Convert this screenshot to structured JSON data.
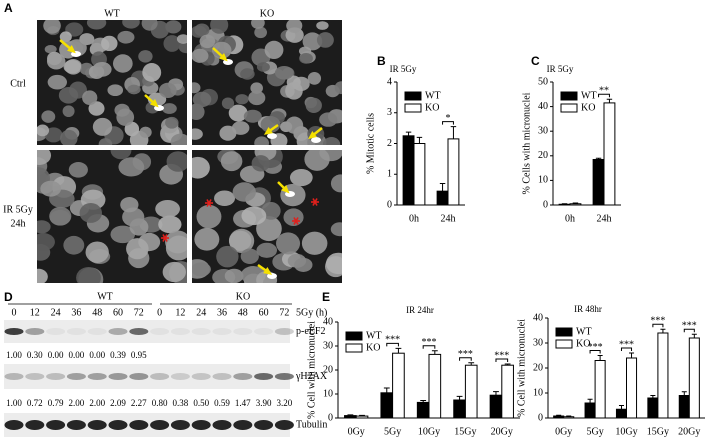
{
  "panel_a": {
    "label": "A",
    "columns": [
      "WT",
      "KO"
    ],
    "rows": [
      [
        "Ctrl"
      ],
      [
        "IR 5Gy",
        "24h"
      ]
    ]
  },
  "panel_d": {
    "label": "D",
    "groups": [
      "WT",
      "KO"
    ],
    "lanes": [
      "0",
      "12",
      "24",
      "36",
      "48",
      "60",
      "72",
      "0",
      "12",
      "24",
      "36",
      "48",
      "60",
      "72"
    ],
    "lane_unit": "5Gy (h)",
    "blots": [
      {
        "name": "p-eEF2",
        "quant": [
          "1.00",
          "0.30",
          "0.00",
          "0.00",
          "0.00",
          "0.39",
          "0.95"
        ]
      },
      {
        "name": "γH2AX",
        "quant": [
          "1.00",
          "0.72",
          "0.79",
          "2.00",
          "2.00",
          "2.09",
          "2.27",
          "0.80",
          "0.38",
          "0.50",
          "0.59",
          "1.47",
          "3.90",
          "3.20"
        ]
      },
      {
        "name": "Tubulin"
      }
    ]
  },
  "chart_data": [
    {
      "panel": "B",
      "type": "bar",
      "title": "IR 5Gy",
      "ylabel": "% Mitotic cells",
      "categories": [
        "0h",
        "24h"
      ],
      "series": [
        {
          "name": "WT",
          "color": "#000000",
          "values": [
            2.25,
            0.45
          ],
          "errors": [
            0.12,
            0.25
          ]
        },
        {
          "name": "KO",
          "color": "#ffffff",
          "values": [
            2.0,
            2.15
          ],
          "errors": [
            0.2,
            0.4
          ]
        }
      ],
      "significance": [
        null,
        "*"
      ],
      "ylim": [
        0,
        4
      ],
      "yticks": [
        0,
        1,
        2,
        3,
        4
      ],
      "legend": "upper left"
    },
    {
      "panel": "C",
      "type": "bar",
      "title": "IR 5Gy",
      "ylabel": "% Cells with micronuclei",
      "categories": [
        "0h",
        "24h"
      ],
      "series": [
        {
          "name": "WT",
          "color": "#000000",
          "values": [
            0.3,
            18.5
          ],
          "errors": [
            0.2,
            0.5
          ]
        },
        {
          "name": "KO",
          "color": "#ffffff",
          "values": [
            0.5,
            41.5
          ],
          "errors": [
            0.3,
            1.5
          ]
        }
      ],
      "significance": [
        null,
        "**"
      ],
      "ylim": [
        0,
        50
      ],
      "yticks": [
        0,
        10,
        20,
        30,
        40,
        50
      ],
      "legend": "upper left"
    },
    {
      "panel": "E",
      "type": "bar",
      "title": "IR 24hr",
      "ylabel": "% Cell with micronuclei",
      "categories": [
        "0Gy",
        "5Gy",
        "10Gy",
        "15Gy",
        "20Gy"
      ],
      "series": [
        {
          "name": "WT",
          "color": "#000000",
          "values": [
            1,
            10.5,
            6.5,
            7.5,
            9.5
          ],
          "errors": [
            0.3,
            2,
            0.8,
            1.5,
            1.5
          ]
        },
        {
          "name": "KO",
          "color": "#ffffff",
          "values": [
            0.8,
            27,
            26.5,
            22,
            22
          ],
          "errors": [
            0.3,
            2,
            1.5,
            1,
            0.5
          ]
        }
      ],
      "significance": [
        null,
        "***",
        "***",
        "***",
        "***"
      ],
      "ylim": [
        0,
        40
      ],
      "yticks": [
        0,
        10,
        20,
        30,
        40
      ],
      "legend": "upper left"
    },
    {
      "type": "bar",
      "title": "IR 48hr",
      "ylabel": "% Cell with micronuclei",
      "categories": [
        "0Gy",
        "5Gy",
        "10Gy",
        "15Gy",
        "20Gy"
      ],
      "series": [
        {
          "name": "WT",
          "color": "#000000",
          "values": [
            0.8,
            6,
            3.5,
            8,
            9
          ],
          "errors": [
            0.3,
            1.5,
            1.5,
            1,
            1.5
          ]
        },
        {
          "name": "KO",
          "color": "#ffffff",
          "values": [
            0.5,
            23,
            24,
            34,
            32
          ],
          "errors": [
            0.3,
            2,
            2,
            1.5,
            1.5
          ]
        }
      ],
      "significance": [
        null,
        "***",
        "***",
        "***",
        "***"
      ],
      "ylim": [
        0,
        40
      ],
      "yticks": [
        0,
        10,
        20,
        30,
        40
      ],
      "legend": "upper left"
    }
  ]
}
